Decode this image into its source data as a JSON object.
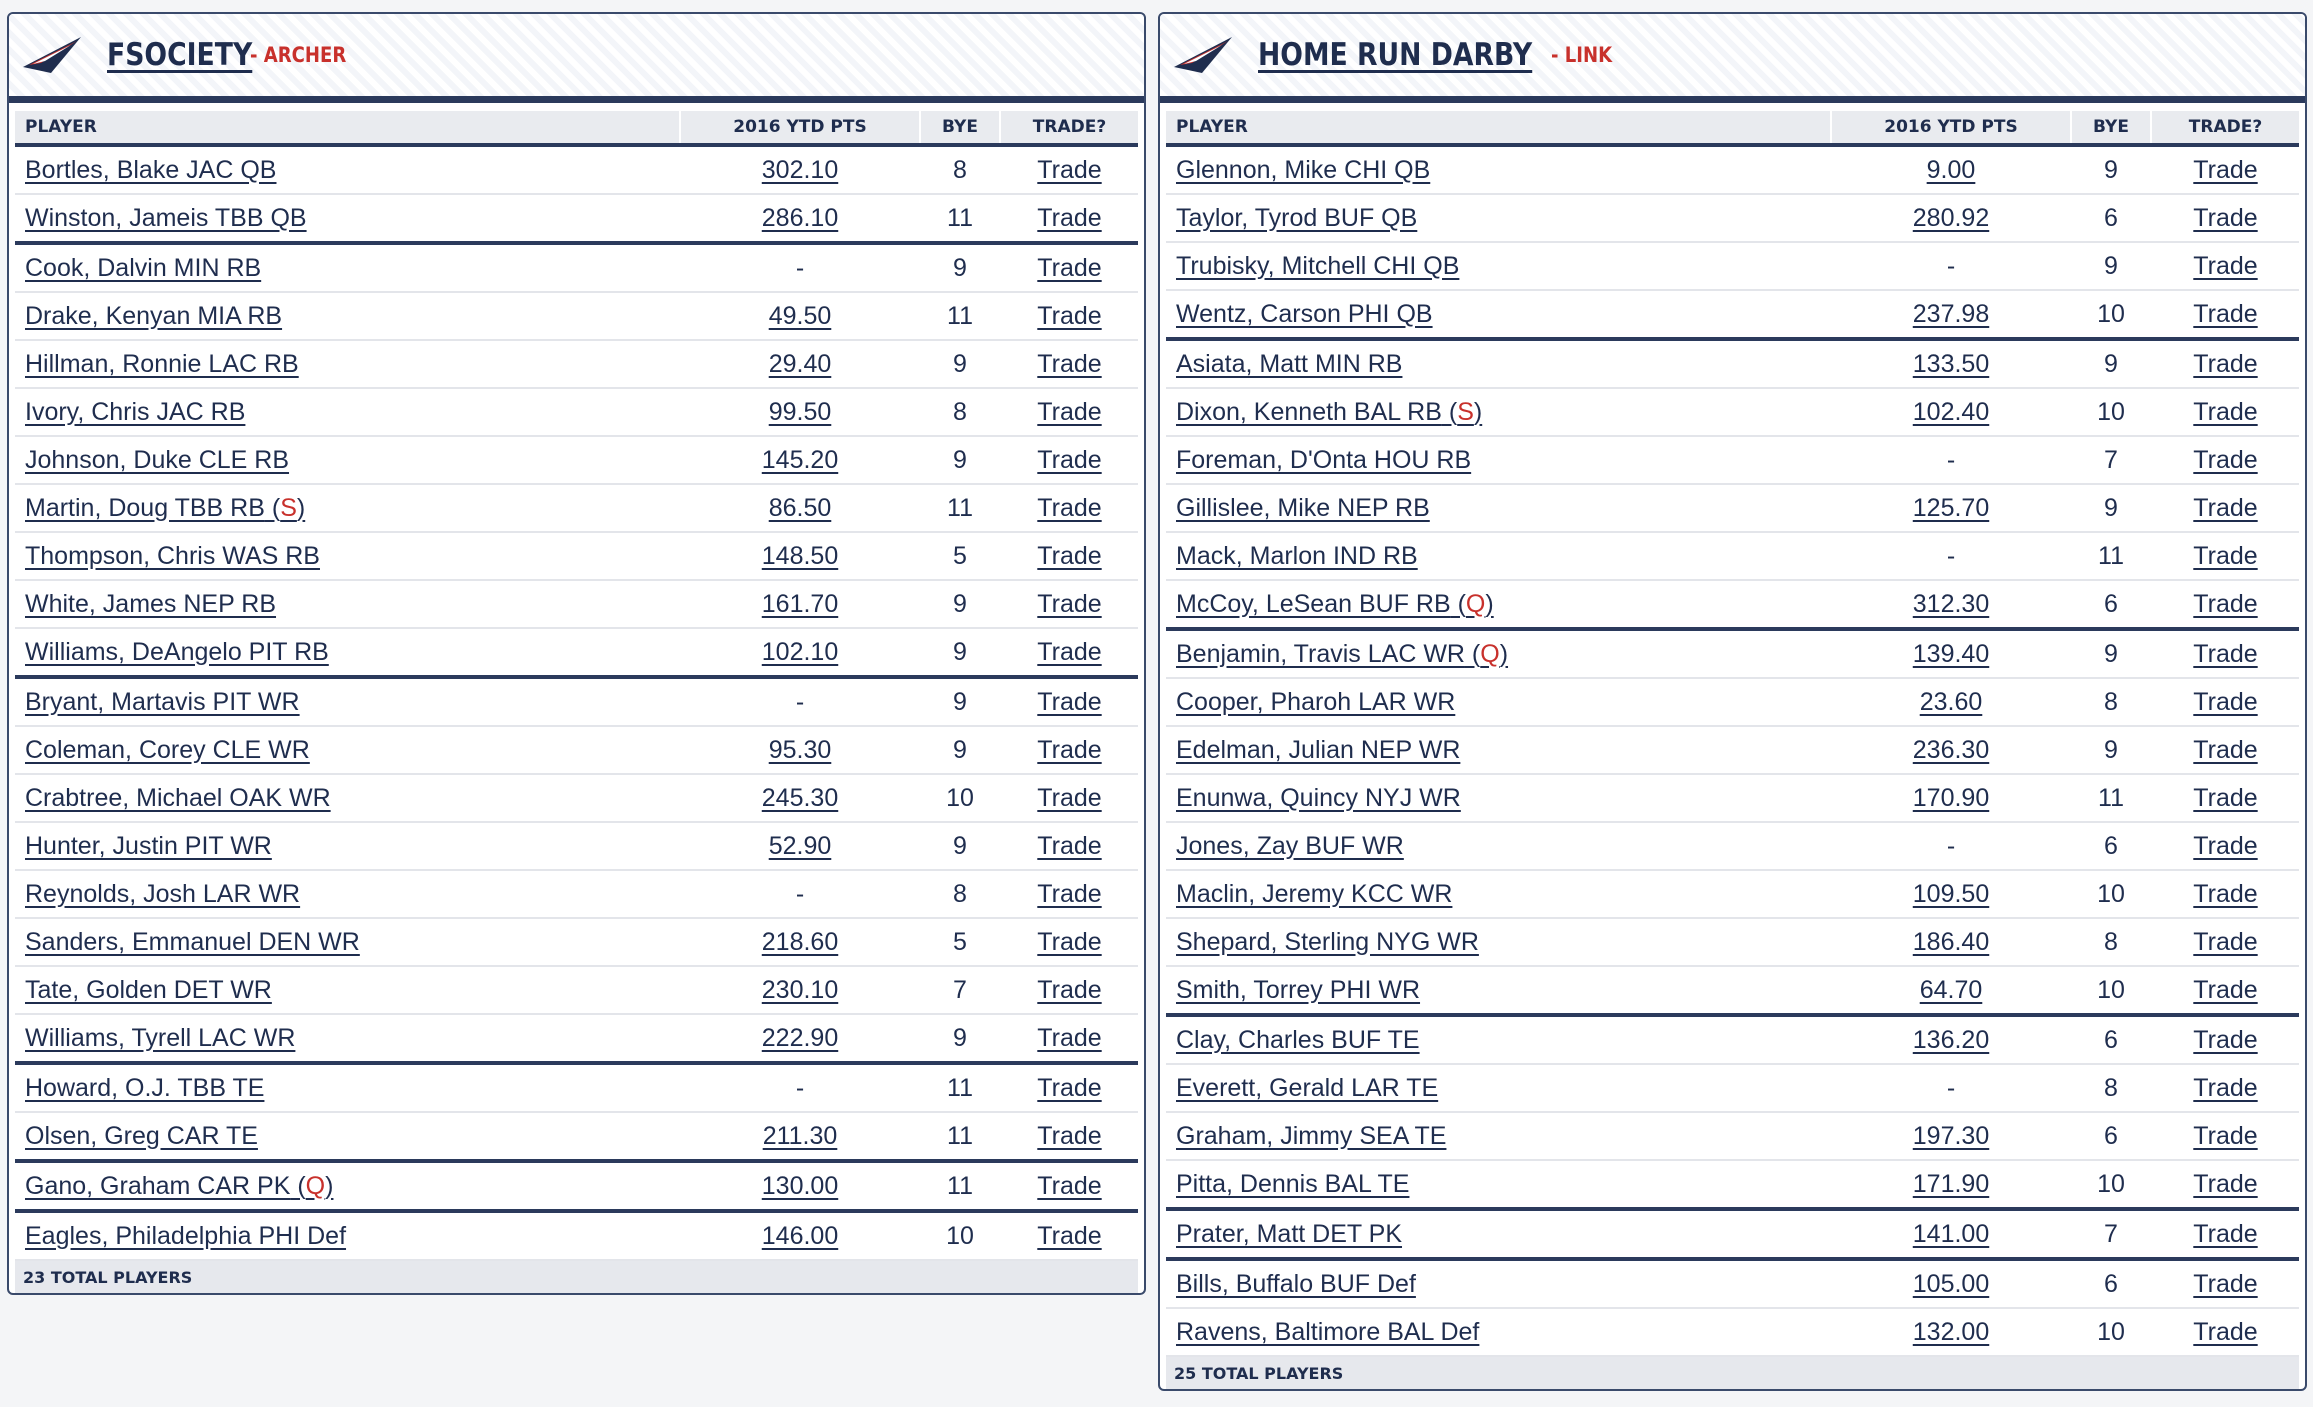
{
  "colors": {
    "navy": "#1f2d4e",
    "accent_red": "#c8312c",
    "header_bg": "#e9ebef"
  },
  "columns": {
    "player": "PLAYER",
    "pts": "2016 YTD PTS",
    "bye": "BYE",
    "trade": "TRADE?"
  },
  "teams": [
    {
      "name": "FSOCIETY",
      "owner": "- ARCHER",
      "logo_icon": "team-pennant-icon",
      "footer": "23 TOTAL PLAYERS",
      "players": [
        {
          "name": "Bortles, Blake JAC QB",
          "status": "",
          "pts": "302.10",
          "bye": "8",
          "trade": "Trade",
          "group_start": true
        },
        {
          "name": "Winston, Jameis TBB QB",
          "status": "",
          "pts": "286.10",
          "bye": "11",
          "trade": "Trade",
          "group_start": false
        },
        {
          "name": "Cook, Dalvin MIN RB",
          "status": "",
          "pts": "-",
          "bye": "9",
          "trade": "Trade",
          "group_start": true
        },
        {
          "name": "Drake, Kenyan MIA RB",
          "status": "",
          "pts": "49.50",
          "bye": "11",
          "trade": "Trade",
          "group_start": false
        },
        {
          "name": "Hillman, Ronnie LAC RB",
          "status": "",
          "pts": "29.40",
          "bye": "9",
          "trade": "Trade",
          "group_start": false
        },
        {
          "name": "Ivory, Chris JAC RB",
          "status": "",
          "pts": "99.50",
          "bye": "8",
          "trade": "Trade",
          "group_start": false
        },
        {
          "name": "Johnson, Duke CLE RB",
          "status": "",
          "pts": "145.20",
          "bye": "9",
          "trade": "Trade",
          "group_start": false
        },
        {
          "name": "Martin, Doug TBB RB",
          "status": "S",
          "pts": "86.50",
          "bye": "11",
          "trade": "Trade",
          "group_start": false
        },
        {
          "name": "Thompson, Chris WAS RB",
          "status": "",
          "pts": "148.50",
          "bye": "5",
          "trade": "Trade",
          "group_start": false
        },
        {
          "name": "White, James NEP RB",
          "status": "",
          "pts": "161.70",
          "bye": "9",
          "trade": "Trade",
          "group_start": false
        },
        {
          "name": "Williams, DeAngelo PIT RB",
          "status": "",
          "pts": "102.10",
          "bye": "9",
          "trade": "Trade",
          "group_start": false
        },
        {
          "name": "Bryant, Martavis PIT WR",
          "status": "",
          "pts": "-",
          "bye": "9",
          "trade": "Trade",
          "group_start": true
        },
        {
          "name": "Coleman, Corey CLE WR",
          "status": "",
          "pts": "95.30",
          "bye": "9",
          "trade": "Trade",
          "group_start": false
        },
        {
          "name": "Crabtree, Michael OAK WR",
          "status": "",
          "pts": "245.30",
          "bye": "10",
          "trade": "Trade",
          "group_start": false
        },
        {
          "name": "Hunter, Justin PIT WR",
          "status": "",
          "pts": "52.90",
          "bye": "9",
          "trade": "Trade",
          "group_start": false
        },
        {
          "name": "Reynolds, Josh LAR WR",
          "status": "",
          "pts": "-",
          "bye": "8",
          "trade": "Trade",
          "group_start": false
        },
        {
          "name": "Sanders, Emmanuel DEN WR",
          "status": "",
          "pts": "218.60",
          "bye": "5",
          "trade": "Trade",
          "group_start": false
        },
        {
          "name": "Tate, Golden DET WR",
          "status": "",
          "pts": "230.10",
          "bye": "7",
          "trade": "Trade",
          "group_start": false
        },
        {
          "name": "Williams, Tyrell LAC WR",
          "status": "",
          "pts": "222.90",
          "bye": "9",
          "trade": "Trade",
          "group_start": false
        },
        {
          "name": "Howard, O.J. TBB TE",
          "status": "",
          "pts": "-",
          "bye": "11",
          "trade": "Trade",
          "group_start": true
        },
        {
          "name": "Olsen, Greg CAR TE",
          "status": "",
          "pts": "211.30",
          "bye": "11",
          "trade": "Trade",
          "group_start": false
        },
        {
          "name": "Gano, Graham CAR PK",
          "status": "Q",
          "pts": "130.00",
          "bye": "11",
          "trade": "Trade",
          "group_start": true
        },
        {
          "name": "Eagles, Philadelphia PHI Def",
          "status": "",
          "pts": "146.00",
          "bye": "10",
          "trade": "Trade",
          "group_start": true
        }
      ]
    },
    {
      "name": "HOME RUN DARBY",
      "owner": "- LINK",
      "logo_icon": "team-pennant-icon",
      "footer": "25 TOTAL PLAYERS",
      "players": [
        {
          "name": "Glennon, Mike CHI QB",
          "status": "",
          "pts": "9.00",
          "bye": "9",
          "trade": "Trade",
          "group_start": true
        },
        {
          "name": "Taylor, Tyrod BUF QB",
          "status": "",
          "pts": "280.92",
          "bye": "6",
          "trade": "Trade",
          "group_start": false
        },
        {
          "name": "Trubisky, Mitchell CHI QB",
          "status": "",
          "pts": "-",
          "bye": "9",
          "trade": "Trade",
          "group_start": false
        },
        {
          "name": "Wentz, Carson PHI QB",
          "status": "",
          "pts": "237.98",
          "bye": "10",
          "trade": "Trade",
          "group_start": false
        },
        {
          "name": "Asiata, Matt MIN RB",
          "status": "",
          "pts": "133.50",
          "bye": "9",
          "trade": "Trade",
          "group_start": true
        },
        {
          "name": "Dixon, Kenneth BAL RB",
          "status": "S",
          "pts": "102.40",
          "bye": "10",
          "trade": "Trade",
          "group_start": false
        },
        {
          "name": "Foreman, D'Onta HOU RB",
          "status": "",
          "pts": "-",
          "bye": "7",
          "trade": "Trade",
          "group_start": false
        },
        {
          "name": "Gillislee, Mike NEP RB",
          "status": "",
          "pts": "125.70",
          "bye": "9",
          "trade": "Trade",
          "group_start": false
        },
        {
          "name": "Mack, Marlon IND RB",
          "status": "",
          "pts": "-",
          "bye": "11",
          "trade": "Trade",
          "group_start": false
        },
        {
          "name": "McCoy, LeSean BUF RB",
          "status": "Q",
          "pts": "312.30",
          "bye": "6",
          "trade": "Trade",
          "group_start": false
        },
        {
          "name": "Benjamin, Travis LAC WR",
          "status": "Q",
          "pts": "139.40",
          "bye": "9",
          "trade": "Trade",
          "group_start": true
        },
        {
          "name": "Cooper, Pharoh LAR WR",
          "status": "",
          "pts": "23.60",
          "bye": "8",
          "trade": "Trade",
          "group_start": false
        },
        {
          "name": "Edelman, Julian NEP WR",
          "status": "",
          "pts": "236.30",
          "bye": "9",
          "trade": "Trade",
          "group_start": false
        },
        {
          "name": "Enunwa, Quincy NYJ WR",
          "status": "",
          "pts": "170.90",
          "bye": "11",
          "trade": "Trade",
          "group_start": false
        },
        {
          "name": "Jones, Zay BUF WR",
          "status": "",
          "pts": "-",
          "bye": "6",
          "trade": "Trade",
          "group_start": false
        },
        {
          "name": "Maclin, Jeremy KCC WR",
          "status": "",
          "pts": "109.50",
          "bye": "10",
          "trade": "Trade",
          "group_start": false
        },
        {
          "name": "Shepard, Sterling NYG WR",
          "status": "",
          "pts": "186.40",
          "bye": "8",
          "trade": "Trade",
          "group_start": false
        },
        {
          "name": "Smith, Torrey PHI WR",
          "status": "",
          "pts": "64.70",
          "bye": "10",
          "trade": "Trade",
          "group_start": false
        },
        {
          "name": "Clay, Charles BUF TE",
          "status": "",
          "pts": "136.20",
          "bye": "6",
          "trade": "Trade",
          "group_start": true
        },
        {
          "name": "Everett, Gerald LAR TE",
          "status": "",
          "pts": "-",
          "bye": "8",
          "trade": "Trade",
          "group_start": false
        },
        {
          "name": "Graham, Jimmy SEA TE",
          "status": "",
          "pts": "197.30",
          "bye": "6",
          "trade": "Trade",
          "group_start": false
        },
        {
          "name": "Pitta, Dennis BAL TE",
          "status": "",
          "pts": "171.90",
          "bye": "10",
          "trade": "Trade",
          "group_start": false
        },
        {
          "name": "Prater, Matt DET PK",
          "status": "",
          "pts": "141.00",
          "bye": "7",
          "trade": "Trade",
          "group_start": true
        },
        {
          "name": "Bills, Buffalo BUF Def",
          "status": "",
          "pts": "105.00",
          "bye": "6",
          "trade": "Trade",
          "group_start": true
        },
        {
          "name": "Ravens, Baltimore BAL Def",
          "status": "",
          "pts": "132.00",
          "bye": "10",
          "trade": "Trade",
          "group_start": false
        }
      ]
    }
  ]
}
